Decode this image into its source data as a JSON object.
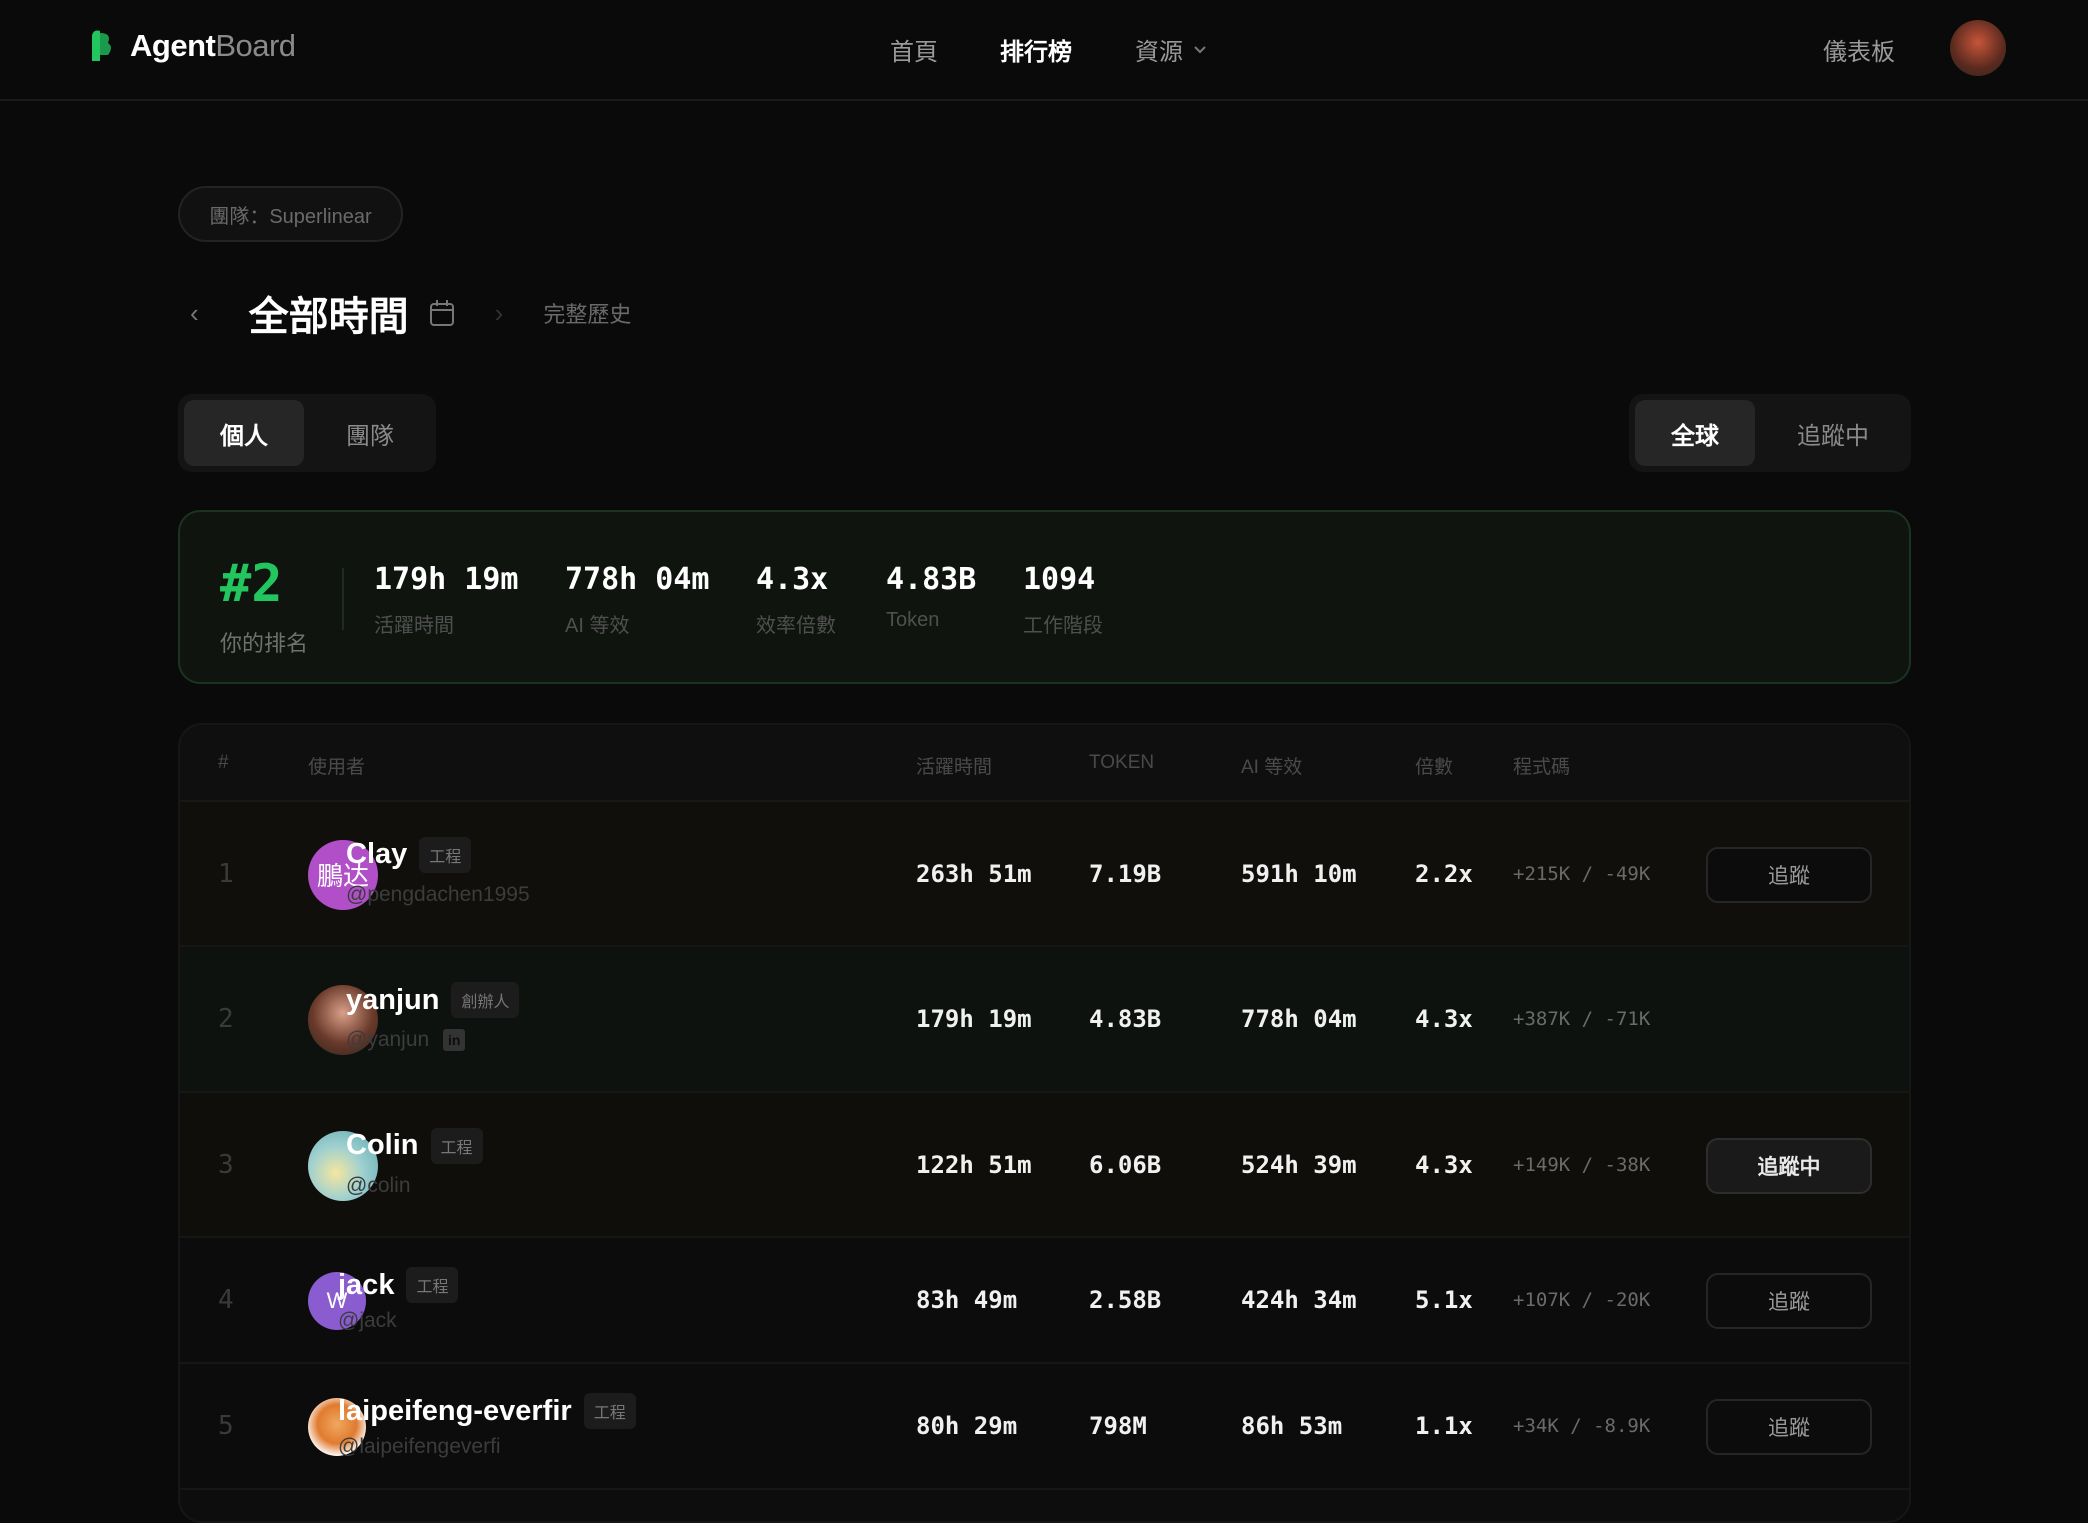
{
  "brand": {
    "name_bold": "Agent",
    "name_light": "Board",
    "accent": "#22c55e"
  },
  "nav": {
    "home": "首頁",
    "leaderboard": "排行榜",
    "resources": "資源",
    "dashboard": "儀表板"
  },
  "team_pill": "團隊：Superlinear",
  "period": {
    "title": "全部時間",
    "history": "完整歷史"
  },
  "scope_tabs": [
    {
      "label": "個人",
      "active": true
    },
    {
      "label": "團隊",
      "active": false
    }
  ],
  "filter_tabs": [
    {
      "label": "全球",
      "active": true
    },
    {
      "label": "追蹤中",
      "active": false
    }
  ],
  "my_rank": {
    "rank": "#2",
    "rank_label": "你的排名",
    "stats": [
      {
        "value": "179h 19m",
        "label": "活躍時間"
      },
      {
        "value": "778h 04m",
        "label": "AI 等效"
      },
      {
        "value": "4.3x",
        "label": "效率倍數"
      },
      {
        "value": "4.83B",
        "label": "Token"
      },
      {
        "value": "1094",
        "label": "工作階段"
      }
    ]
  },
  "table": {
    "headers": {
      "rank": "#",
      "user": "使用者",
      "active": "活躍時間",
      "token": "TOKEN",
      "ai": "AI 等效",
      "mult": "倍數",
      "code": "程式碼"
    },
    "rows": [
      {
        "rank": "1",
        "name": "Clay",
        "tag": "工程",
        "handle": "@pengdachen1995",
        "avatar_text": "鵬达",
        "avatar_color": "#b04fc8",
        "active": "263h 51m",
        "token": "7.19B",
        "ai": "591h 10m",
        "mult": "2.2x",
        "code": "+215K / -49K",
        "button": "追蹤",
        "following": false
      },
      {
        "rank": "2",
        "name": "yanjun",
        "tag": "創辦人",
        "handle": "@yanjun",
        "linkedin": "in",
        "active": "179h 19m",
        "token": "4.83B",
        "ai": "778h 04m",
        "mult": "4.3x",
        "code": "+387K / -71K"
      },
      {
        "rank": "3",
        "name": "Colin",
        "tag": "工程",
        "handle": "@colin",
        "active": "122h 51m",
        "token": "6.06B",
        "ai": "524h 39m",
        "mult": "4.3x",
        "code": "+149K / -38K",
        "button": "追蹤中",
        "following": true
      },
      {
        "rank": "4",
        "name": "jack",
        "tag": "工程",
        "handle": "@jack",
        "avatar_text": "W",
        "avatar_color": "#8a5cd0",
        "active": "83h 49m",
        "token": "2.58B",
        "ai": "424h 34m",
        "mult": "5.1x",
        "code": "+107K / -20K",
        "button": "追蹤",
        "following": false
      },
      {
        "rank": "5",
        "name": "laipeifeng-everfir",
        "tag": "工程",
        "handle": "@laipeifengeverfi",
        "active": "80h 29m",
        "token": "798M",
        "ai": "86h 53m",
        "mult": "1.1x",
        "code": "+34K / -8.9K",
        "button": "追蹤",
        "following": false
      }
    ]
  }
}
